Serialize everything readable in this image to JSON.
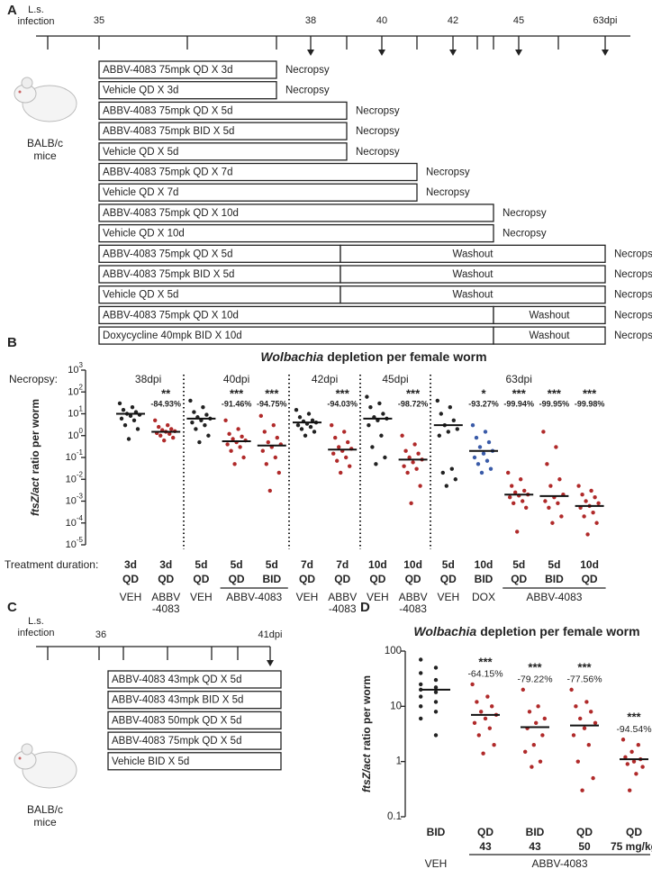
{
  "panel_labels": [
    "A",
    "B",
    "C",
    "D"
  ],
  "panel_a": {
    "infection": [
      "L.s.",
      "infection"
    ],
    "ticks": [
      "35",
      "38",
      "40",
      "42",
      "45",
      "63dpi"
    ],
    "mouse": [
      "BALB/c",
      "mice"
    ],
    "rows": [
      {
        "segments": [
          {
            "text": "ABBV-4083 75mpk QD X 3d",
            "color": "#c0282d"
          }
        ],
        "outcome": "Necropsy"
      },
      {
        "segments": [
          {
            "text": "Vehicle QD X 3d",
            "color": "#222222"
          }
        ],
        "outcome": "Necropsy"
      },
      {
        "segments": [
          {
            "text": "ABBV-4083 75mpk QD X 5d",
            "color": "#c0282d"
          }
        ],
        "outcome": "Necropsy"
      },
      {
        "segments": [
          {
            "text": "ABBV-4083 75mpk BID X 5d",
            "color": "#c0282d"
          }
        ],
        "outcome": "Necropsy"
      },
      {
        "segments": [
          {
            "text": "Vehicle QD X 5d",
            "color": "#222222"
          }
        ],
        "outcome": "Necropsy"
      },
      {
        "segments": [
          {
            "text": "ABBV-4083 75mpk QD X 7d",
            "color": "#c0282d"
          }
        ],
        "outcome": "Necropsy"
      },
      {
        "segments": [
          {
            "text": "Vehicle QD X 7d",
            "color": "#222222"
          }
        ],
        "outcome": "Necropsy"
      },
      {
        "segments": [
          {
            "text": "ABBV-4083 75mpk QD X 10d",
            "color": "#c0282d"
          }
        ],
        "outcome": "Necropsy"
      },
      {
        "segments": [
          {
            "text": "Vehicle QD X 10d",
            "color": "#222222"
          }
        ],
        "outcome": "Necropsy"
      },
      {
        "segments": [
          {
            "text": "ABBV-4083 75mpk QD X 5d",
            "color": "#c0282d"
          },
          {
            "text": "Washout",
            "color": "#222222"
          }
        ],
        "outcome": "Necropsy"
      },
      {
        "segments": [
          {
            "text": "ABBV-4083 75mpk BID X 5d",
            "color": "#c0282d"
          },
          {
            "text": "Washout",
            "color": "#222222"
          }
        ],
        "outcome": "Necropsy"
      },
      {
        "segments": [
          {
            "text": "Vehicle QD X 5d",
            "color": "#222222"
          },
          {
            "text": "Washout",
            "color": "#222222"
          }
        ],
        "outcome": "Necropsy"
      },
      {
        "segments": [
          {
            "text": "ABBV-4083 75mpk QD X 10d",
            "color": "#c0282d"
          },
          {
            "text": "Washout",
            "color": "#222222"
          }
        ],
        "outcome": "Necropsy"
      },
      {
        "segments": [
          {
            "text": "Doxycycline 40mpk BID X 10d",
            "color": "#3a5ba8"
          },
          {
            "text": "Washout",
            "color": "#222222"
          }
        ],
        "outcome": "Necropsy"
      }
    ]
  },
  "panel_c": {
    "infection": [
      "L.s.",
      "infection"
    ],
    "ticks": [
      "36",
      "41dpi"
    ],
    "mouse": [
      "BALB/c",
      "mice"
    ],
    "rows": [
      {
        "text": "ABBV-4083 43mpk QD X 5d",
        "color": "#c0282d"
      },
      {
        "text": "ABBV-4083 43mpk BID X 5d",
        "color": "#c0282d"
      },
      {
        "text": "ABBV-4083 50mpk QD X 5d",
        "color": "#c0282d"
      },
      {
        "text": "ABBV-4083 75mpk QD X 5d",
        "color": "#c0282d"
      },
      {
        "text": "Vehicle BID X 5d",
        "color": "#222222"
      }
    ]
  },
  "chart_data": [
    {
      "type": "scatter",
      "title": [
        "Wolbachia",
        "depletion per female worm"
      ],
      "y_label": [
        "ftsZ/act",
        "ratio per worm"
      ],
      "y_log": true,
      "ylim": [
        1e-05,
        1000
      ],
      "yticks": [
        {
          "value": 1e-05,
          "label": "10",
          "exponent": "-5"
        },
        {
          "value": 0.0001,
          "label": "10",
          "exponent": "-4"
        },
        {
          "value": 0.001,
          "label": "10",
          "exponent": "-3"
        },
        {
          "value": 0.01,
          "label": "10",
          "exponent": "-2"
        },
        {
          "value": 0.1,
          "label": "10",
          "exponent": "-1"
        },
        {
          "value": 1,
          "label": "10",
          "exponent": "0"
        },
        {
          "value": 10,
          "label": "10",
          "exponent": "1"
        },
        {
          "value": 100,
          "label": "10",
          "exponent": "2"
        },
        {
          "value": 1000,
          "label": "10",
          "exponent": "3"
        }
      ],
      "necropsy_label": "Necropsy:",
      "necropsy": [
        "38dpi",
        "40dpi",
        "42dpi",
        "45dpi",
        "63dpi"
      ],
      "duration_label": "Treatment duration:",
      "durations": [
        "3d",
        "3d",
        "5d",
        "5d",
        "5d",
        "7d",
        "7d",
        "10d",
        "10d",
        "5d",
        "10d",
        "5d",
        "5d",
        "10d"
      ],
      "regimens": [
        "QD",
        "QD",
        "QD",
        "QD",
        "BID",
        "QD",
        "QD",
        "QD",
        "QD",
        "QD",
        "BID",
        "QD",
        "BID",
        "QD"
      ],
      "significance": [
        null,
        "**",
        null,
        "***",
        "***",
        null,
        "***",
        null,
        "***",
        null,
        "*",
        "***",
        "***",
        "***"
      ],
      "changes": [
        null,
        "-84.93%",
        null,
        "-91.46%",
        "-94.75%",
        null,
        "-94.03%",
        null,
        "-98.72%",
        null,
        "-93.27%",
        "-99.94%",
        "-99.95%",
        "-99.98%"
      ],
      "treatment_groups": [
        [
          "VEH"
        ],
        [
          "ABBV",
          "-4083"
        ],
        [
          "VEH"
        ],
        [
          "ABBV-4083"
        ],
        [
          "VEH"
        ],
        [
          "ABBV",
          "-4083"
        ],
        [
          "VEH"
        ],
        [
          "ABBV",
          "-4083"
        ],
        [
          "VEH"
        ],
        [
          "DOX"
        ],
        [
          "ABBV-4083"
        ]
      ],
      "groups": [
        {
          "color": "#222222",
          "median": 10,
          "values": [
            30,
            20,
            15,
            12,
            10,
            9,
            8,
            6,
            5,
            3,
            2,
            0.7
          ]
        },
        {
          "color": "#b02a2a",
          "median": 1.5,
          "values": [
            5,
            3,
            2.5,
            2,
            1.8,
            1.6,
            1.5,
            1.3,
            1.2,
            1,
            0.8,
            0.6
          ]
        },
        {
          "color": "#222222",
          "median": 6,
          "values": [
            40,
            20,
            12,
            9,
            7,
            6,
            5,
            4,
            3,
            2,
            1,
            0.5
          ]
        },
        {
          "color": "#b02a2a",
          "median": 0.55,
          "values": [
            5,
            2,
            1.2,
            0.9,
            0.7,
            0.6,
            0.5,
            0.4,
            0.3,
            0.2,
            0.1,
            0.05
          ]
        },
        {
          "color": "#b02a2a",
          "median": 0.35,
          "values": [
            8,
            3,
            1.5,
            0.8,
            0.5,
            0.4,
            0.3,
            0.2,
            0.1,
            0.05,
            0.02,
            0.003
          ]
        },
        {
          "color": "#222222",
          "median": 4,
          "values": [
            15,
            10,
            7,
            5,
            4.5,
            4,
            3.5,
            3,
            2.5,
            2,
            1.5,
            1
          ]
        },
        {
          "color": "#b02a2a",
          "median": 0.23,
          "values": [
            3,
            1.5,
            0.8,
            0.5,
            0.3,
            0.25,
            0.2,
            0.15,
            0.1,
            0.07,
            0.04,
            0.02
          ]
        },
        {
          "color": "#222222",
          "median": 6,
          "values": [
            60,
            30,
            20,
            10,
            7,
            6,
            5,
            3,
            1,
            0.3,
            0.1,
            0.05
          ]
        },
        {
          "color": "#b02a2a",
          "median": 0.08,
          "values": [
            1,
            0.4,
            0.2,
            0.15,
            0.1,
            0.08,
            0.06,
            0.04,
            0.03,
            0.02,
            0.005,
            0.0008
          ]
        },
        {
          "color": "#222222",
          "median": 3,
          "values": [
            40,
            20,
            10,
            5,
            3,
            2,
            1.5,
            1,
            0.03,
            0.02,
            0.01,
            0.005
          ]
        },
        {
          "color": "#3a5ba8",
          "median": 0.2,
          "values": [
            3,
            1.5,
            0.8,
            0.5,
            0.3,
            0.2,
            0.15,
            0.1,
            0.07,
            0.05,
            0.03,
            0.02
          ]
        },
        {
          "color": "#b02a2a",
          "median": 0.002,
          "values": [
            0.02,
            0.01,
            0.005,
            0.003,
            0.0025,
            0.002,
            0.0018,
            0.0015,
            0.001,
            0.0008,
            0.0005,
            4e-05
          ]
        },
        {
          "color": "#b02a2a",
          "median": 0.0017,
          "values": [
            1.5,
            0.3,
            0.05,
            0.01,
            0.005,
            0.002,
            0.0015,
            0.001,
            0.0008,
            0.0005,
            0.0002,
            0.0001
          ]
        },
        {
          "color": "#b02a2a",
          "median": 0.0006,
          "values": [
            0.005,
            0.003,
            0.002,
            0.0015,
            0.001,
            0.0008,
            0.0006,
            0.0005,
            0.0003,
            0.0002,
            0.0001,
            3e-05
          ]
        }
      ]
    },
    {
      "type": "scatter",
      "title": [
        "Wolbachia",
        "depletion per female worm"
      ],
      "y_label": [
        "ftsZ/act",
        "ratio per worm"
      ],
      "y_log": true,
      "ylim": [
        0.1,
        100
      ],
      "yticks": [
        0.1,
        1,
        10,
        100
      ],
      "regimens": [
        "BID",
        "QD",
        "BID",
        "QD",
        "QD"
      ],
      "doses": [
        null,
        "43",
        "43",
        "50",
        "75 mg/kg"
      ],
      "significance": [
        null,
        "***",
        "***",
        "***",
        "***"
      ],
      "changes": [
        null,
        "-64.15%",
        "-79.22%",
        "-77.56%",
        "-94.54%"
      ],
      "treatment_groups": [
        [
          "VEH"
        ],
        [
          "ABBV-4083"
        ]
      ],
      "groups": [
        {
          "color": "#222222",
          "median": 20,
          "values": [
            70,
            50,
            40,
            30,
            25,
            22,
            20,
            18,
            15,
            12,
            10,
            8,
            6,
            3
          ]
        },
        {
          "color": "#b02a2a",
          "median": 7,
          "values": [
            25,
            15,
            12,
            10,
            8,
            7,
            6,
            5,
            4,
            3,
            2,
            1.4
          ]
        },
        {
          "color": "#b02a2a",
          "median": 4.2,
          "values": [
            20,
            10,
            8,
            6,
            5,
            4,
            3,
            2,
            1.5,
            1,
            0.8
          ]
        },
        {
          "color": "#b02a2a",
          "median": 4.5,
          "values": [
            20,
            12,
            10,
            8,
            6,
            5,
            4,
            3,
            2,
            1,
            0.5,
            0.3
          ]
        },
        {
          "color": "#b02a2a",
          "median": 1.1,
          "values": [
            2.5,
            2,
            1.5,
            1.2,
            1.1,
            1,
            0.9,
            0.8,
            0.6,
            0.3
          ]
        }
      ]
    }
  ]
}
